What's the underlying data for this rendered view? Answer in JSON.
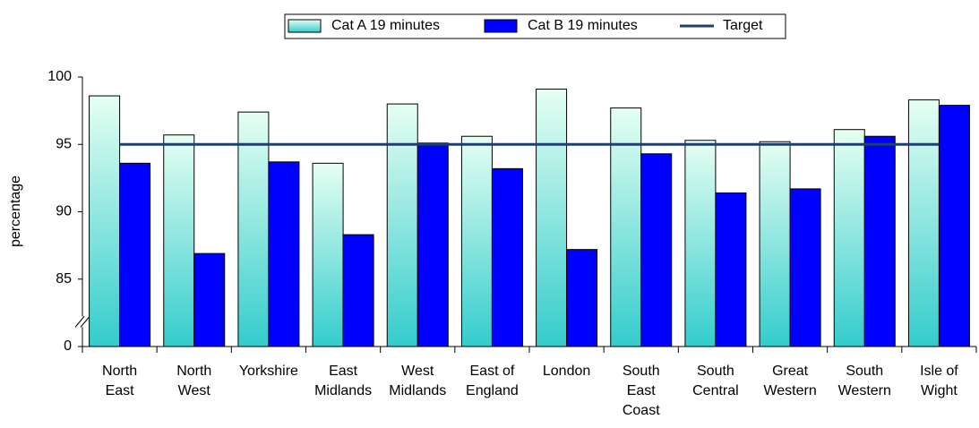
{
  "chart_data": {
    "type": "bar",
    "y_label": "percentage",
    "categories": [
      "North\nEast",
      "North\nWest",
      "Yorkshire",
      "East\nMidlands",
      "West\nMidlands",
      "East of\nEngland",
      "London",
      "South\nEast\nCoast",
      "South\nCentral",
      "Great\nWestern",
      "South\nWestern",
      "Isle of\nWight"
    ],
    "series": [
      {
        "name": "Cat A 19 minutes",
        "color": "#33cccc",
        "values": [
          98.6,
          95.7,
          97.4,
          93.6,
          98.0,
          95.6,
          99.1,
          97.7,
          95.3,
          95.2,
          96.1,
          98.3
        ]
      },
      {
        "name": "Cat B 19 minutes",
        "color": "#0000ff",
        "values": [
          93.6,
          86.9,
          93.7,
          88.3,
          95.1,
          93.2,
          87.2,
          94.3,
          91.4,
          91.7,
          95.6,
          97.9
        ]
      },
      {
        "name": "Target",
        "type": "line",
        "color": "#1f3f6f",
        "values": [
          95,
          95,
          95,
          95,
          95,
          95,
          95,
          95,
          95,
          95,
          95,
          95
        ]
      }
    ],
    "ylim": [
      0,
      100
    ],
    "ybreak": [
      0,
      80
    ],
    "yticks": [
      0,
      85,
      90,
      95,
      100
    ],
    "grid": false,
    "legend": "top"
  }
}
